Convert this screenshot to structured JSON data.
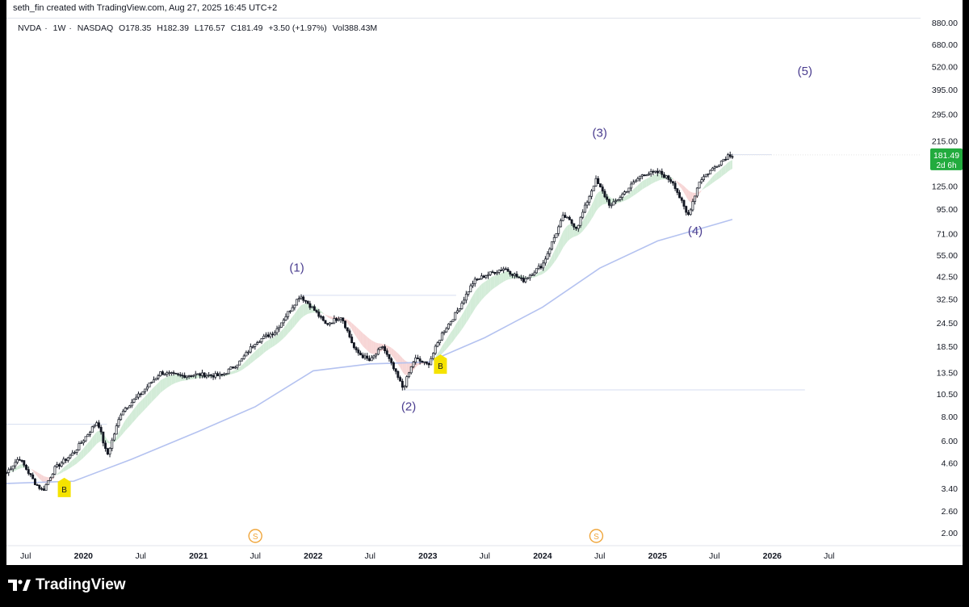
{
  "header": {
    "credit": "seth_fin created with TradingView.com, Aug 27, 2025 16:45 UTC+2"
  },
  "legend": {
    "symbol": "NVDA",
    "interval": "1W",
    "exchange": "NASDAQ",
    "open": "O178.35",
    "high": "H182.39",
    "low": "L176.57",
    "close": "C181.49",
    "change": "+3.50 (+1.97%)",
    "volume": "Vol388.43M"
  },
  "price_badge": {
    "price": "181.49",
    "countdown": "2d 6h",
    "color": "#22ab3e"
  },
  "brand": {
    "name": "TradingView"
  },
  "colors": {
    "candle": "#131722",
    "ma_long": "#b4c2f0",
    "ribbon_up": "#d3ecd8",
    "ribbon_down": "#f7d6d6",
    "marker_b": "#f5e300",
    "dividend_marker": "#f0a63c",
    "wave_label": "#4a3d8f",
    "horizontal_line": "#d6def0"
  },
  "chart_data": {
    "type": "candlestick",
    "symbol": "NVDA",
    "interval": "1W",
    "scale": "log",
    "ylim": [
      2.0,
      880.0
    ],
    "xlim": [
      "2019-05-01",
      "2026-12-31"
    ],
    "price_ticks": [
      "880.00",
      "680.00",
      "520.00",
      "395.00",
      "295.00",
      "215.00",
      "125.00",
      "95.00",
      "71.00",
      "55.00",
      "42.50",
      "32.50",
      "24.50",
      "18.50",
      "13.50",
      "10.50",
      "8.00",
      "6.00",
      "4.60",
      "3.40",
      "2.60",
      "2.00"
    ],
    "time_ticks": [
      {
        "label": "Jul",
        "date": "2019-07-01",
        "major": false
      },
      {
        "label": "2020",
        "date": "2020-01-01",
        "major": true
      },
      {
        "label": "Jul",
        "date": "2020-07-01",
        "major": false
      },
      {
        "label": "2021",
        "date": "2021-01-01",
        "major": true
      },
      {
        "label": "Jul",
        "date": "2021-07-01",
        "major": false
      },
      {
        "label": "2022",
        "date": "2022-01-01",
        "major": true
      },
      {
        "label": "Jul",
        "date": "2022-07-01",
        "major": false
      },
      {
        "label": "2023",
        "date": "2023-01-01",
        "major": true
      },
      {
        "label": "Jul",
        "date": "2023-07-01",
        "major": false
      },
      {
        "label": "2024",
        "date": "2024-01-01",
        "major": true
      },
      {
        "label": "Jul",
        "date": "2024-07-01",
        "major": false
      },
      {
        "label": "2025",
        "date": "2025-01-01",
        "major": true
      },
      {
        "label": "Jul",
        "date": "2025-07-01",
        "major": false
      },
      {
        "label": "2026",
        "date": "2026-01-01",
        "major": true
      },
      {
        "label": "Jul",
        "date": "2026-07-01",
        "major": false
      }
    ],
    "price_path": [
      [
        "2019-05-01",
        4.1
      ],
      [
        "2019-06-10",
        4.9
      ],
      [
        "2019-08-01",
        3.6
      ],
      [
        "2019-08-25",
        3.3
      ],
      [
        "2019-10-01",
        4.3
      ],
      [
        "2019-12-01",
        5.2
      ],
      [
        "2020-02-15",
        7.6
      ],
      [
        "2020-03-16",
        5.0
      ],
      [
        "2020-05-01",
        8.5
      ],
      [
        "2020-07-01",
        10.5
      ],
      [
        "2020-09-01",
        13.5
      ],
      [
        "2020-11-01",
        13.0
      ],
      [
        "2021-01-01",
        13.2
      ],
      [
        "2021-03-15",
        13.0
      ],
      [
        "2021-05-15",
        15.5
      ],
      [
        "2021-07-01",
        19.5
      ],
      [
        "2021-09-01",
        22.0
      ],
      [
        "2021-11-20",
        34.0
      ],
      [
        "2022-01-01",
        29.0
      ],
      [
        "2022-02-10",
        24.0
      ],
      [
        "2022-04-01",
        26.5
      ],
      [
        "2022-05-15",
        17.5
      ],
      [
        "2022-07-01",
        15.5
      ],
      [
        "2022-08-10",
        18.5
      ],
      [
        "2022-10-14",
        11.2
      ],
      [
        "2022-11-20",
        16.0
      ],
      [
        "2023-01-01",
        14.8
      ],
      [
        "2023-02-15",
        21.5
      ],
      [
        "2023-04-01",
        27.5
      ],
      [
        "2023-05-26",
        40.0
      ],
      [
        "2023-07-01",
        43.0
      ],
      [
        "2023-09-01",
        47.0
      ],
      [
        "2023-10-30",
        40.5
      ],
      [
        "2024-01-01",
        49.0
      ],
      [
        "2024-03-08",
        88.0
      ],
      [
        "2024-04-19",
        76.0
      ],
      [
        "2024-06-18",
        135.0
      ],
      [
        "2024-08-05",
        98.0
      ],
      [
        "2024-09-30",
        122.0
      ],
      [
        "2024-11-15",
        145.0
      ],
      [
        "2025-01-07",
        147.0
      ],
      [
        "2025-02-20",
        131.0
      ],
      [
        "2025-04-07",
        87.0
      ],
      [
        "2025-05-15",
        134.0
      ],
      [
        "2025-07-01",
        157.0
      ],
      [
        "2025-08-15",
        182.0
      ],
      [
        "2025-08-27",
        181.49
      ]
    ],
    "ma_long_path": [
      [
        "2019-05-01",
        3.6
      ],
      [
        "2019-12-01",
        3.7
      ],
      [
        "2020-06-01",
        4.8
      ],
      [
        "2021-01-01",
        6.7
      ],
      [
        "2021-07-01",
        9.0
      ],
      [
        "2022-01-01",
        13.8
      ],
      [
        "2022-07-01",
        15.0
      ],
      [
        "2023-01-01",
        15.3
      ],
      [
        "2023-07-01",
        20.5
      ],
      [
        "2024-01-01",
        29.5
      ],
      [
        "2024-07-01",
        47.0
      ],
      [
        "2025-01-01",
        65.0
      ],
      [
        "2025-08-27",
        84.0
      ]
    ],
    "wave_labels": [
      {
        "text": "(1)",
        "date": "2021-11-10",
        "price": 45.0
      },
      {
        "text": "(2)",
        "date": "2022-11-01",
        "price": 8.6
      },
      {
        "text": "(3)",
        "date": "2024-07-01",
        "price": 225.0
      },
      {
        "text": "(4)",
        "date": "2025-05-01",
        "price": 70.0
      },
      {
        "text": "(5)",
        "date": "2026-04-15",
        "price": 470.0
      }
    ],
    "buy_markers": [
      {
        "text": "B",
        "date": "2019-11-01",
        "price": 3.4
      },
      {
        "text": "B",
        "date": "2023-02-10",
        "price": 14.8
      }
    ],
    "dividend_markers": [
      {
        "text": "S",
        "date": "2021-07-01"
      },
      {
        "text": "S",
        "date": "2024-06-20"
      }
    ],
    "horizontal_levels": [
      {
        "price": 34.0,
        "from": "2021-11-20",
        "to": "2023-04-01"
      },
      {
        "price": 11.0,
        "from": "2022-10-14",
        "to": "2026-04-15"
      },
      {
        "price": 182.0,
        "from": "2025-08-15",
        "to": "2025-12-31"
      },
      {
        "price": 7.3,
        "from": "2019-05-01",
        "to": "2020-03-16"
      }
    ]
  }
}
